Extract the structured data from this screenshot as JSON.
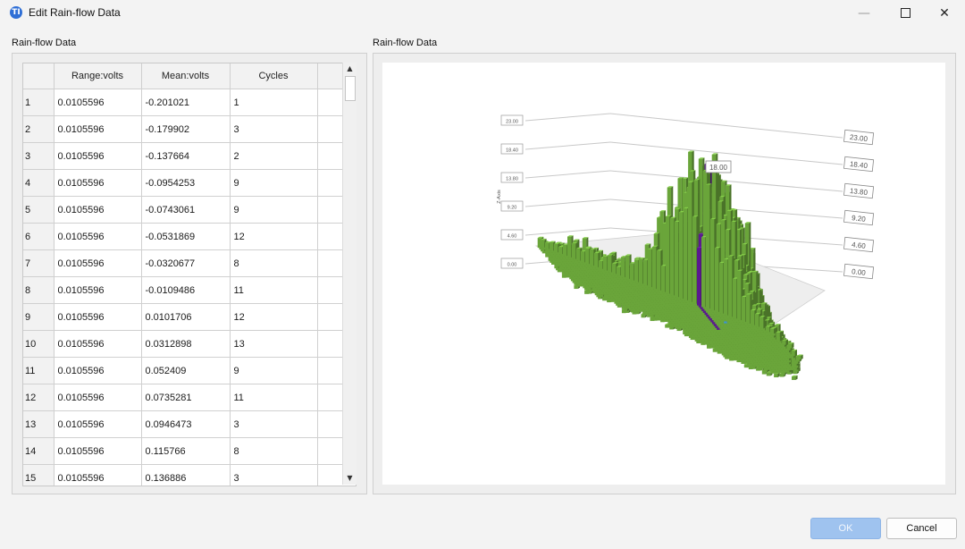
{
  "window": {
    "title": "Edit Rain-flow Data",
    "icon_glyph": "TI"
  },
  "left_panel": {
    "label": "Rain-flow Data"
  },
  "right_panel": {
    "label": "Rain-flow Data"
  },
  "table": {
    "columns": [
      "",
      "Range:volts",
      "Mean:volts",
      "Cycles"
    ],
    "rows": [
      [
        "1",
        "0.0105596",
        "-0.201021",
        "1"
      ],
      [
        "2",
        "0.0105596",
        "-0.179902",
        "3"
      ],
      [
        "3",
        "0.0105596",
        "-0.137664",
        "2"
      ],
      [
        "4",
        "0.0105596",
        "-0.0954253",
        "9"
      ],
      [
        "5",
        "0.0105596",
        "-0.0743061",
        "9"
      ],
      [
        "6",
        "0.0105596",
        "-0.0531869",
        "12"
      ],
      [
        "7",
        "0.0105596",
        "-0.0320677",
        "8"
      ],
      [
        "8",
        "0.0105596",
        "-0.0109486",
        "11"
      ],
      [
        "9",
        "0.0105596",
        "0.0101706",
        "12"
      ],
      [
        "10",
        "0.0105596",
        "0.0312898",
        "13"
      ],
      [
        "11",
        "0.0105596",
        "0.052409",
        "9"
      ],
      [
        "12",
        "0.0105596",
        "0.0735281",
        "11"
      ],
      [
        "13",
        "0.0105596",
        "0.0946473",
        "3"
      ],
      [
        "14",
        "0.0105596",
        "0.115766",
        "8"
      ],
      [
        "15",
        "0.0105596",
        "0.136886",
        "3"
      ]
    ]
  },
  "chart_data": {
    "type": "bar3d",
    "title": "",
    "zlabel": "Z-Axis",
    "z_ticks_left": [
      "23.00",
      "18.40",
      "13.80",
      "9.20",
      "4.60",
      "0.00"
    ],
    "z_ticks_right": [
      "23.00",
      "18.40",
      "13.80",
      "9.20",
      "4.60",
      "0.00"
    ],
    "zlim": [
      0,
      23
    ],
    "tooltip": "18.00",
    "colors": {
      "bar": "#6aa53a",
      "highlight": "#5b1a8f",
      "selected": "#3a93d6"
    }
  },
  "buttons": {
    "ok": "OK",
    "cancel": "Cancel"
  }
}
